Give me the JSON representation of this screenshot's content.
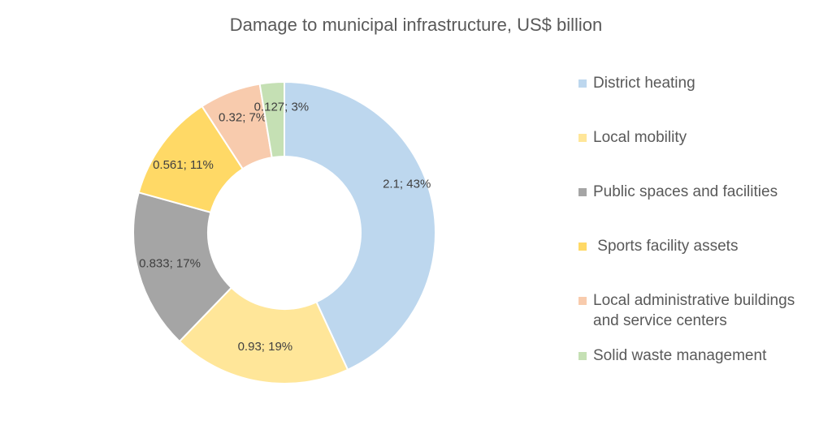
{
  "chart_data": {
    "type": "pie",
    "donut": true,
    "title": "Damage to municipal infrastructure, US$ billion",
    "legend_position": "right",
    "slices": [
      {
        "name": "District heating",
        "value": 2.1,
        "percent": 43,
        "label": "2.1; 43%",
        "color": "#BDD7EE"
      },
      {
        "name": "Local mobility",
        "value": 0.93,
        "percent": 19,
        "label": "0.93; 19%",
        "color": "#FFE699"
      },
      {
        "name": "Public spaces and facilities",
        "value": 0.833,
        "percent": 17,
        "label": "0.833; 17%",
        "color": "#A5A5A5"
      },
      {
        "name": " Sports facility assets",
        "value": 0.561,
        "percent": 11,
        "label": "0.561; 11%",
        "color": "#FFD966"
      },
      {
        "name": "Local administrative buildings and service centers",
        "value": 0.32,
        "percent": 7,
        "label": "0.32; 7%",
        "color": "#F8CBAD"
      },
      {
        "name": "Solid waste management",
        "value": 0.127,
        "percent": 3,
        "label": "0.127; 3%",
        "color": "#C5E0B4"
      }
    ]
  }
}
